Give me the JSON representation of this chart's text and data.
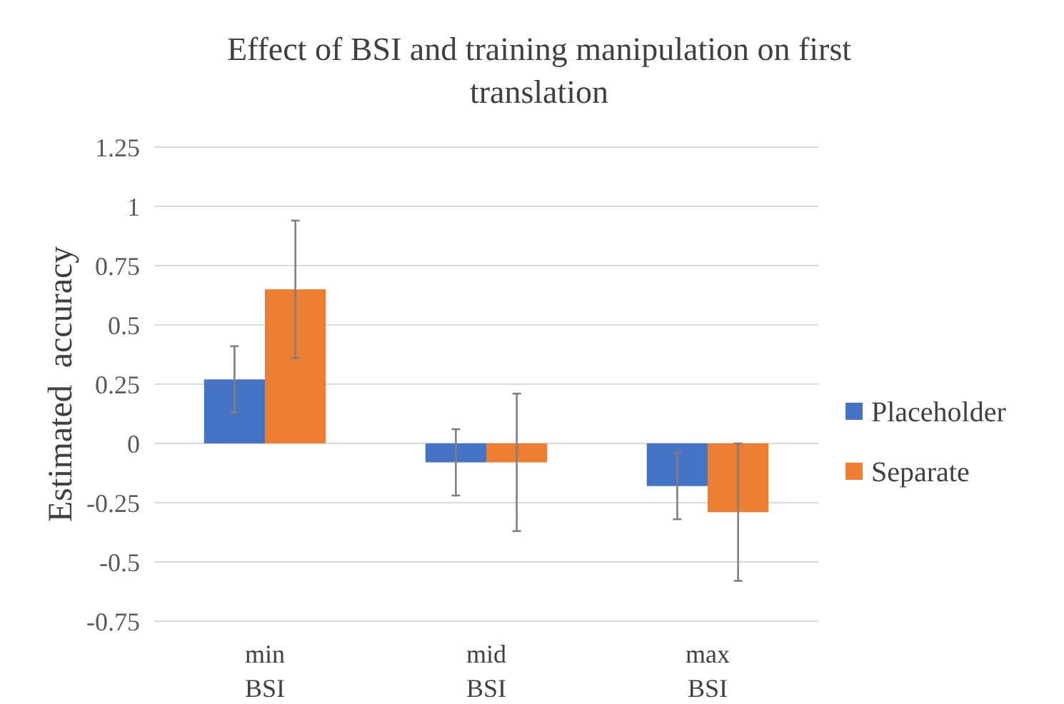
{
  "chart_data": {
    "type": "bar",
    "title": "Effect of BSI and training manipulation on first translation",
    "ylabel": "Estimated  accuracy",
    "categories": [
      "min BSI",
      "mid BSI",
      "max BSI"
    ],
    "series": [
      {
        "name": "Placeholder",
        "color": "#4472c4",
        "values": [
          0.27,
          -0.08,
          -0.18
        ],
        "errors": [
          0.14,
          0.14,
          0.14
        ]
      },
      {
        "name": "Separate",
        "color": "#ed7d31",
        "values": [
          0.65,
          -0.08,
          -0.29
        ],
        "errors": [
          0.29,
          0.29,
          0.29
        ]
      }
    ],
    "ylim": [
      -0.75,
      1.25
    ],
    "yticks": [
      -0.75,
      -0.5,
      -0.25,
      0,
      0.25,
      0.5,
      0.75,
      1,
      1.25
    ],
    "grid": "y",
    "legend": "right"
  }
}
